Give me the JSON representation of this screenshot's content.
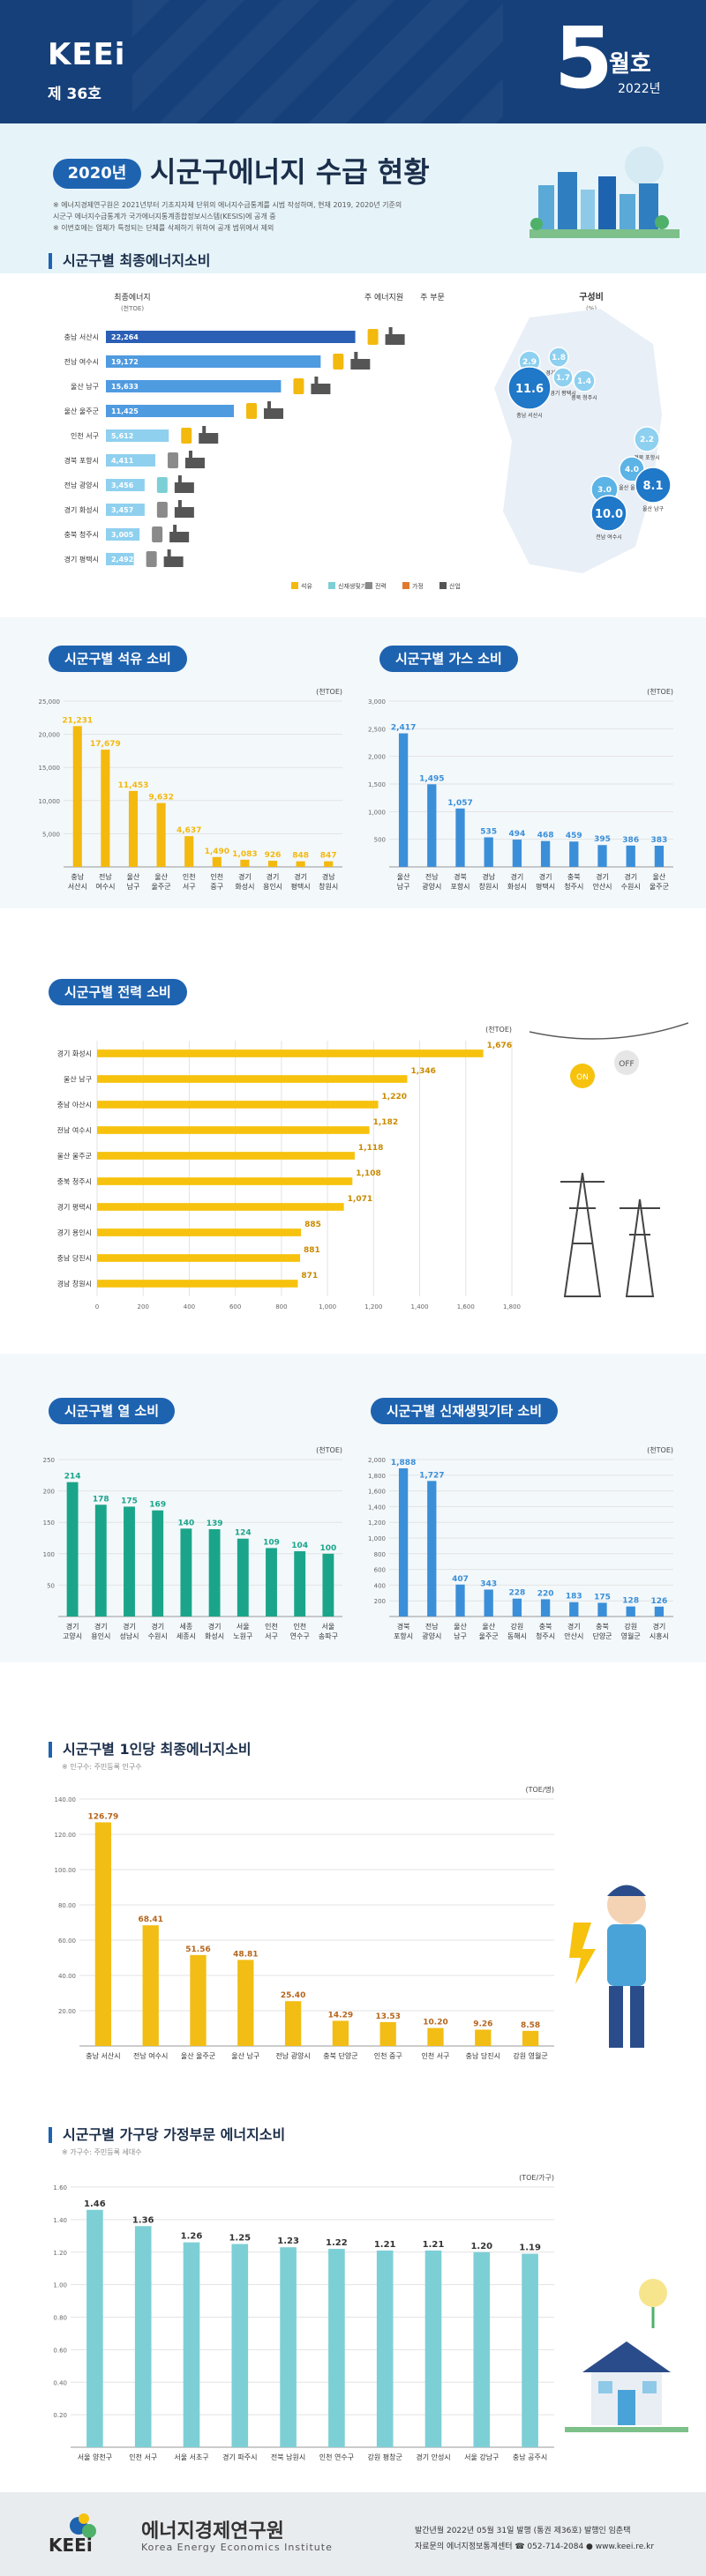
{
  "header": {
    "brand": "KEEi",
    "issue": "제 36호",
    "month_num": "5",
    "month_label": "월호",
    "year": "2022년"
  },
  "title": {
    "year_pill": "2020년",
    "main": "시군구에너지 수급 현황",
    "notes": [
      "※ 에너지경제연구원은 2021년부터 기초지자체 단위의 에너지수급통계를 시범 작성하며, 현재 2019, 2020년 기준의",
      "   시군구 에너지수급통계가 국가에너지통계종합정보시스템(KESIS)에 공개 중",
      "※ 이번호에는 업체가 특정되는 단체를 삭제하기 위하여 공개 범위에서 제외"
    ]
  },
  "sections": {
    "final": "시군구별 최종에너지소비",
    "oil": "시군구별 석유 소비",
    "gas": "시군구별 가스 소비",
    "elec": "시군구별 전력 소비",
    "heat": "시군구별 열 소비",
    "renew": "시군구별 신재생및기타 소비",
    "percap": "시군구별 1인당 최종에너지소비",
    "household": "시군구별 가구당 가정부문 에너지소비"
  },
  "final_chart": {
    "unit_label": "최종에너지",
    "unit": "(천TOE)",
    "col_main": "주 에너지원",
    "col_sector": "주 부문",
    "composition_title": "구성비",
    "composition_unit": "(%)",
    "legend": [
      "석유",
      "신재생및기타",
      "전력",
      "가정",
      "산업"
    ],
    "map_labels": [
      {
        "name": "인천 서구",
        "value": "2.9"
      },
      {
        "name": "경기 화성시",
        "value": "1.8"
      },
      {
        "name": "경기 평택시",
        "value": "1.7"
      },
      {
        "name": "충북 청주시",
        "value": "1.4"
      },
      {
        "name": "충남 서산시",
        "value": "11.6"
      },
      {
        "name": "경북 포항시",
        "value": "2.2"
      },
      {
        "name": "울산 울주군",
        "value": "4.0"
      },
      {
        "name": "울산 남구",
        "value": "8.1"
      },
      {
        "name": "전남 광양시",
        "value": "3.0"
      },
      {
        "name": "전남 여수시",
        "value": "10.0"
      }
    ]
  },
  "oil_unit": "(천TOE)",
  "gas_unit": "(천TOE)",
  "elec_unit": "(천TOE)",
  "heat_unit": "(천TOE)",
  "renew_unit": "(천TOE)",
  "percap_unit": "(TOE/명)",
  "percap_note": "※ 인구수: 주민등록 인구수",
  "household_unit": "(TOE/가구)",
  "household_note": "※ 가구수: 주민등록 세대수",
  "chart_data": [
    {
      "id": "final",
      "type": "bar",
      "title": "시군구별 최종에너지소비",
      "categories": [
        "충남 서산시",
        "전남 여수시",
        "울산 남구",
        "울산 울주군",
        "인천 서구",
        "경북 포항시",
        "전남 광양시",
        "경기 화성시",
        "충북 청주시",
        "경기 평택시"
      ],
      "values": [
        22264,
        19172,
        15633,
        11425,
        5612,
        4411,
        3456,
        3457,
        3005,
        2492
      ],
      "value_labels": [
        "22,264",
        "19,172",
        "15,633",
        "11,425",
        "5,612",
        "4,411",
        "3,456",
        "3,457",
        "3,005",
        "2,492"
      ],
      "main_source": [
        "석유",
        "석유",
        "석유",
        "석유",
        "석유",
        "전력",
        "신재생및기타",
        "전력",
        "전력",
        "전력"
      ],
      "main_sector": [
        "산업",
        "산업",
        "산업",
        "산업",
        "산업",
        "산업",
        "산업",
        "산업",
        "산업",
        "산업"
      ],
      "share_pct": [
        11.6,
        10.0,
        8.1,
        4.0,
        2.9,
        2.2,
        3.0,
        1.8,
        1.4,
        1.7
      ],
      "xlim": [
        0,
        26000
      ]
    },
    {
      "id": "oil",
      "type": "bar",
      "title": "시군구별 석유 소비",
      "categories": [
        "충남\n서산시",
        "전남\n여수시",
        "울산\n남구",
        "울산\n울주군",
        "인천\n서구",
        "인천\n중구",
        "경기\n화성시",
        "경기\n용인시",
        "경기\n평택시",
        "경남\n창원시"
      ],
      "values": [
        21231,
        17679,
        11453,
        9632,
        4637,
        1490,
        1083,
        926,
        848,
        847
      ],
      "value_labels": [
        "21,231",
        "17,679",
        "11,453",
        "9,632",
        "4,637",
        "1,490",
        "1,083",
        "926",
        "848",
        "847"
      ],
      "ylim": [
        0,
        25000
      ],
      "yticks": [
        "5,000",
        "10,000",
        "15,000",
        "20,000",
        "25,000"
      ]
    },
    {
      "id": "gas",
      "type": "bar",
      "title": "시군구별 가스 소비",
      "categories": [
        "울산\n남구",
        "전남\n광양시",
        "경북\n포항시",
        "경남\n창원시",
        "경기\n화성시",
        "경기\n평택시",
        "충북\n청주시",
        "경기\n안산시",
        "경기\n수원시",
        "울산\n울주군"
      ],
      "values": [
        2417,
        1495,
        1057,
        535,
        494,
        468,
        459,
        395,
        386,
        383
      ],
      "value_labels": [
        "2,417",
        "1,495",
        "1,057",
        "535",
        "494",
        "468",
        "459",
        "395",
        "386",
        "383"
      ],
      "ylim": [
        0,
        3000
      ],
      "yticks": [
        "500",
        "1,000",
        "1,500",
        "2,000",
        "2,500",
        "3,000"
      ]
    },
    {
      "id": "elec",
      "type": "bar",
      "title": "시군구별 전력 소비",
      "categories": [
        "경기 화성시",
        "울산 남구",
        "충남 아산시",
        "전남 여수시",
        "울산 울주군",
        "충북 청주시",
        "경기 평택시",
        "경기 용인시",
        "충남 당진시",
        "경남 창원시"
      ],
      "values": [
        1676,
        1346,
        1220,
        1182,
        1118,
        1108,
        1071,
        885,
        881,
        871
      ],
      "value_labels": [
        "1,676",
        "1,346",
        "1,220",
        "1,182",
        "1,118",
        "1,108",
        "1,071",
        "885",
        "881",
        "871"
      ],
      "xlim": [
        0,
        1800
      ],
      "xticks": [
        "0",
        "200",
        "400",
        "600",
        "800",
        "1,000",
        "1,200",
        "1,400",
        "1,600",
        "1,800"
      ]
    },
    {
      "id": "heat",
      "type": "bar",
      "title": "시군구별 열 소비",
      "categories": [
        "경기\n고양시",
        "경기\n용인시",
        "경기\n성남시",
        "경기\n수원시",
        "세종\n세종시",
        "경기\n화성시",
        "서울\n노원구",
        "인천\n서구",
        "인천\n연수구",
        "서울\n송파구"
      ],
      "values": [
        214,
        178,
        175,
        169,
        140,
        139,
        124,
        109,
        104,
        100
      ],
      "value_labels": [
        "214",
        "178",
        "175",
        "169",
        "140",
        "139",
        "124",
        "109",
        "104",
        "100"
      ],
      "ylim": [
        0,
        250
      ],
      "yticks": [
        "50",
        "100",
        "150",
        "200",
        "250"
      ]
    },
    {
      "id": "renew",
      "type": "bar",
      "title": "시군구별 신재생및기타 소비",
      "categories": [
        "경북\n포항시",
        "전남\n광양시",
        "울산\n남구",
        "울산\n울주군",
        "강원\n동해시",
        "충북\n청주시",
        "경기\n안산시",
        "충북\n단양군",
        "강원\n영월군",
        "경기\n시흥시"
      ],
      "values": [
        1888,
        1727,
        407,
        343,
        228,
        220,
        183,
        175,
        128,
        126
      ],
      "value_labels": [
        "1,888",
        "1,727",
        "407",
        "343",
        "228",
        "220",
        "183",
        "175",
        "128",
        "126"
      ],
      "ylim": [
        0,
        2000
      ],
      "yticks": [
        "200",
        "400",
        "600",
        "800",
        "1,000",
        "1,200",
        "1,400",
        "1,600",
        "1,800",
        "2,000"
      ]
    },
    {
      "id": "percap",
      "type": "bar",
      "title": "시군구별 1인당 최종에너지소비",
      "categories": [
        "충남 서산시",
        "전남 여수시",
        "울산 울주군",
        "울산 남구",
        "전남 광양시",
        "충북 단양군",
        "인천 중구",
        "인천 서구",
        "충남 당진시",
        "강원 영월군"
      ],
      "values": [
        126.79,
        68.41,
        51.56,
        48.81,
        25.4,
        14.29,
        13.53,
        10.2,
        9.26,
        8.58
      ],
      "value_labels": [
        "126.79",
        "68.41",
        "51.56",
        "48.81",
        "25.40",
        "14.29",
        "13.53",
        "10.20",
        "9.26",
        "8.58"
      ],
      "ylim": [
        0,
        140
      ],
      "yticks": [
        "20.00",
        "40.00",
        "60.00",
        "80.00",
        "100.00",
        "120.00",
        "140.00"
      ]
    },
    {
      "id": "household",
      "type": "bar",
      "title": "시군구별 가구당 가정부문 에너지소비",
      "categories": [
        "서울 양천구",
        "인천 서구",
        "서울 서초구",
        "경기 파주시",
        "전북 남원시",
        "인천 연수구",
        "강원 평창군",
        "경기 안성시",
        "서울 강남구",
        "충남 공주시"
      ],
      "values": [
        1.46,
        1.36,
        1.26,
        1.25,
        1.23,
        1.22,
        1.21,
        1.21,
        1.2,
        1.19
      ],
      "value_labels": [
        "1.46",
        "1.36",
        "1.26",
        "1.25",
        "1.23",
        "1.22",
        "1.21",
        "1.21",
        "1.20",
        "1.19"
      ],
      "ylim": [
        0,
        1.6
      ],
      "yticks": [
        "0.20",
        "0.40",
        "0.60",
        "0.80",
        "1.00",
        "1.20",
        "1.40",
        "1.60"
      ]
    }
  ],
  "footer": {
    "logo_text": "KEEi",
    "org_ko": "에너지경제연구원",
    "org_en": "Korea Energy Economics Institute",
    "pub_line1": "발간년월  2022년 05월 31일 발행 (통권 제36호)  발행인 임춘택",
    "pub_line2": "자료문의  에너지정보통계센터  ☎ 052-714-2084  ● www.keei.re.kr"
  },
  "colors": {
    "navy": "#16407a",
    "blue": "#1e63b0",
    "oil": "#f3b90f",
    "gas": "#3b8fd9",
    "elec": "#f6c20e",
    "heat": "#1aa58a",
    "renew": "#3a8fd8",
    "percap": "#f2bd14",
    "household": "#7dcfd6"
  }
}
